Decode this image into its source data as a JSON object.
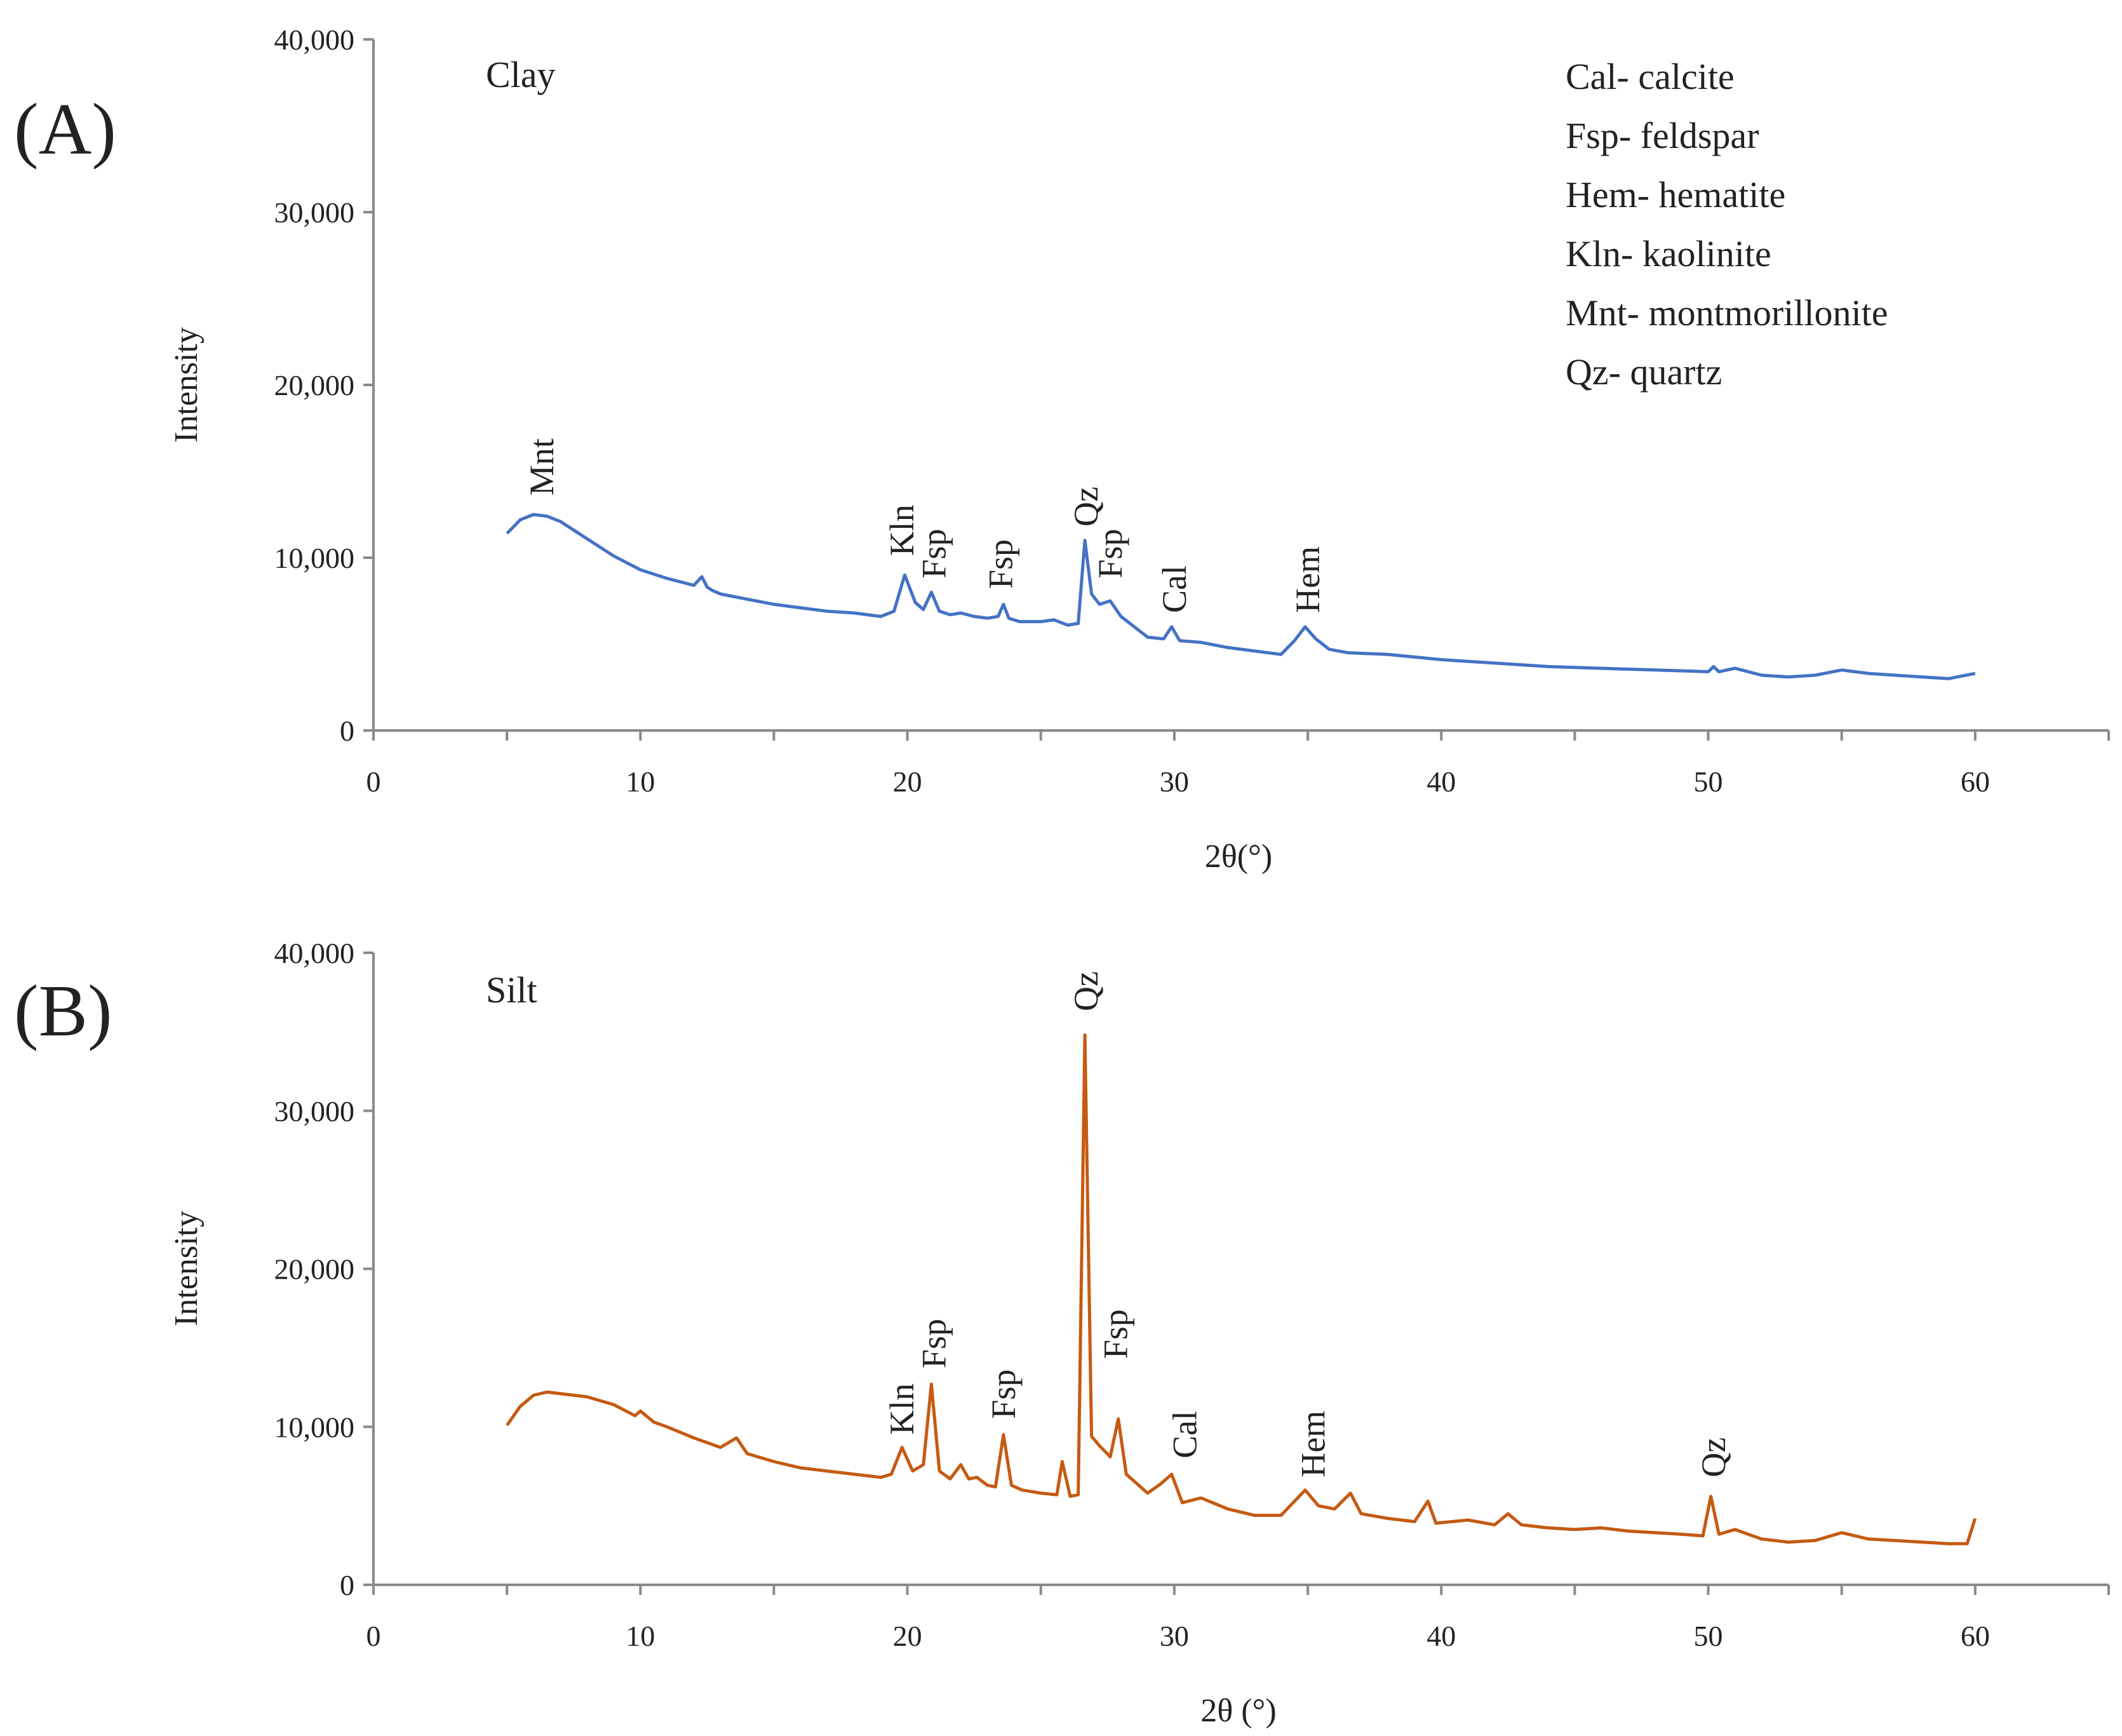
{
  "figure": {
    "legend": [
      "Cal- calcite",
      "Fsp- feldspar",
      "Hem- hematite",
      "Kln- kaolinite",
      "Mnt- montmorillonite",
      "Qz- quartz"
    ]
  },
  "chart_data": [
    {
      "type": "line",
      "panel_label": "(A)",
      "sample": "Clay",
      "xlabel": "2θ(°)",
      "ylabel": "Intensity",
      "xlim": [
        0,
        65
      ],
      "ylim": [
        0,
        40000
      ],
      "xticks": [
        0,
        10,
        20,
        30,
        40,
        50,
        60
      ],
      "xtick_labels": [
        "0",
        "10",
        "20",
        "30",
        "40",
        "50",
        "60"
      ],
      "yticks": [
        0,
        10000,
        20000,
        30000,
        40000
      ],
      "ytick_labels": [
        "0",
        "10,000",
        "20,000",
        "30,000",
        "40,000"
      ],
      "grid": false,
      "color": "#4472c4",
      "series": [
        {
          "name": "Clay",
          "x": [
            5.0,
            5.5,
            6.0,
            6.5,
            7.0,
            7.5,
            8.0,
            8.5,
            9.0,
            10.0,
            11.0,
            12.0,
            12.3,
            12.5,
            12.7,
            13.0,
            14.0,
            15.0,
            16.0,
            17.0,
            18.0,
            19.0,
            19.5,
            19.9,
            20.3,
            20.6,
            20.9,
            21.2,
            21.6,
            22.0,
            22.5,
            23.0,
            23.4,
            23.6,
            23.8,
            24.2,
            25.0,
            25.5,
            26.0,
            26.4,
            26.65,
            26.9,
            27.2,
            27.6,
            28.0,
            28.5,
            29.0,
            29.6,
            29.9,
            30.2,
            31.0,
            32.0,
            33.0,
            34.0,
            34.5,
            34.9,
            35.3,
            35.8,
            36.5,
            38.0,
            40.0,
            42.0,
            44.0,
            46.0,
            48.0,
            50.0,
            50.2,
            50.4,
            51.0,
            52.0,
            53.0,
            54.0,
            55.0,
            56.0,
            57.0,
            58.0,
            59.0,
            60.0
          ],
          "y": [
            11400,
            12200,
            12500,
            12400,
            12100,
            11600,
            11100,
            10600,
            10100,
            9300,
            8800,
            8400,
            8900,
            8300,
            8100,
            7900,
            7600,
            7300,
            7100,
            6900,
            6800,
            6600,
            6900,
            9000,
            7400,
            7000,
            8000,
            6900,
            6700,
            6800,
            6600,
            6500,
            6600,
            7300,
            6500,
            6300,
            6300,
            6400,
            6100,
            6200,
            11000,
            7900,
            7300,
            7500,
            6600,
            6000,
            5400,
            5300,
            6000,
            5200,
            5100,
            4800,
            4600,
            4400,
            5200,
            6000,
            5300,
            4700,
            4500,
            4400,
            4100,
            3900,
            3700,
            3600,
            3500,
            3400,
            3700,
            3400,
            3600,
            3200,
            3100,
            3200,
            3500,
            3300,
            3200,
            3100,
            3000,
            3300
          ]
        }
      ],
      "annotations": [
        {
          "text": "Mnt",
          "x": 6.3,
          "y": 13600
        },
        {
          "text": "Kln",
          "x": 19.8,
          "y": 10100
        },
        {
          "text": "Fsp",
          "x": 21.0,
          "y": 8800
        },
        {
          "text": "Fsp",
          "x": 23.5,
          "y": 8200
        },
        {
          "text": "Qz",
          "x": 26.7,
          "y": 11800
        },
        {
          "text": "Fsp",
          "x": 27.6,
          "y": 8800
        },
        {
          "text": "Cal",
          "x": 30.0,
          "y": 6800
        },
        {
          "text": "Hem",
          "x": 35.0,
          "y": 6800
        }
      ]
    },
    {
      "type": "line",
      "panel_label": "(B)",
      "sample": "Silt",
      "xlabel": "2θ (°)",
      "ylabel": "Intensity",
      "xlim": [
        0,
        65
      ],
      "ylim": [
        0,
        40000
      ],
      "xticks": [
        0,
        10,
        20,
        30,
        40,
        50,
        60
      ],
      "xtick_labels": [
        "0",
        "10",
        "20",
        "30",
        "40",
        "50",
        "60"
      ],
      "yticks": [
        0,
        10000,
        20000,
        30000,
        40000
      ],
      "ytick_labels": [
        "0",
        "10,000",
        "20,000",
        "30,000",
        "40,000"
      ],
      "grid": false,
      "color": "#c55a11",
      "series": [
        {
          "name": "Silt",
          "x": [
            5.0,
            5.5,
            6.0,
            6.5,
            7.0,
            8.0,
            9.0,
            9.8,
            10.0,
            10.5,
            11.0,
            12.0,
            13.0,
            13.6,
            14.0,
            15.0,
            16.0,
            17.0,
            18.0,
            19.0,
            19.4,
            19.8,
            20.2,
            20.6,
            20.9,
            21.2,
            21.6,
            22.0,
            22.3,
            22.6,
            23.0,
            23.3,
            23.6,
            23.9,
            24.3,
            25.0,
            25.6,
            25.8,
            26.1,
            26.4,
            26.65,
            26.9,
            27.2,
            27.6,
            27.9,
            28.2,
            29.0,
            29.5,
            29.9,
            30.3,
            31.0,
            32.0,
            33.0,
            34.0,
            34.9,
            35.4,
            36.0,
            36.6,
            37.0,
            38.0,
            39.0,
            39.5,
            39.8,
            41.0,
            42.0,
            42.5,
            43.0,
            44.0,
            45.0,
            46.0,
            47.0,
            48.0,
            49.0,
            49.8,
            50.1,
            50.4,
            51.0,
            52.0,
            53.0,
            54.0,
            55.0,
            56.0,
            57.0,
            58.0,
            59.0,
            59.7,
            60.0
          ],
          "y": [
            10100,
            11300,
            12000,
            12200,
            12100,
            11900,
            11400,
            10700,
            11000,
            10300,
            10000,
            9300,
            8700,
            9300,
            8300,
            7800,
            7400,
            7200,
            7000,
            6800,
            7000,
            8700,
            7200,
            7600,
            12700,
            7200,
            6700,
            7600,
            6700,
            6800,
            6300,
            6200,
            9500,
            6300,
            6000,
            5800,
            5700,
            7800,
            5600,
            5700,
            34800,
            9400,
            8800,
            8100,
            10500,
            7000,
            5800,
            6400,
            7000,
            5200,
            5500,
            4800,
            4400,
            4400,
            6000,
            5000,
            4800,
            5800,
            4500,
            4200,
            4000,
            5300,
            3900,
            4100,
            3800,
            4500,
            3800,
            3600,
            3500,
            3600,
            3400,
            3300,
            3200,
            3100,
            5600,
            3200,
            3500,
            2900,
            2700,
            2800,
            3300,
            2900,
            2800,
            2700,
            2600,
            2600,
            4200
          ]
        }
      ],
      "annotations": [
        {
          "text": "Kln",
          "x": 19.8,
          "y": 9500
        },
        {
          "text": "Fsp",
          "x": 21.0,
          "y": 13700
        },
        {
          "text": "Fsp",
          "x": 23.6,
          "y": 10500
        },
        {
          "text": "Qz",
          "x": 26.7,
          "y": 36300
        },
        {
          "text": "Fsp",
          "x": 27.8,
          "y": 14300
        },
        {
          "text": "Cal",
          "x": 30.4,
          "y": 8000
        },
        {
          "text": "Hem",
          "x": 35.2,
          "y": 6800
        },
        {
          "text": "Qz",
          "x": 50.2,
          "y": 6800
        }
      ]
    }
  ]
}
